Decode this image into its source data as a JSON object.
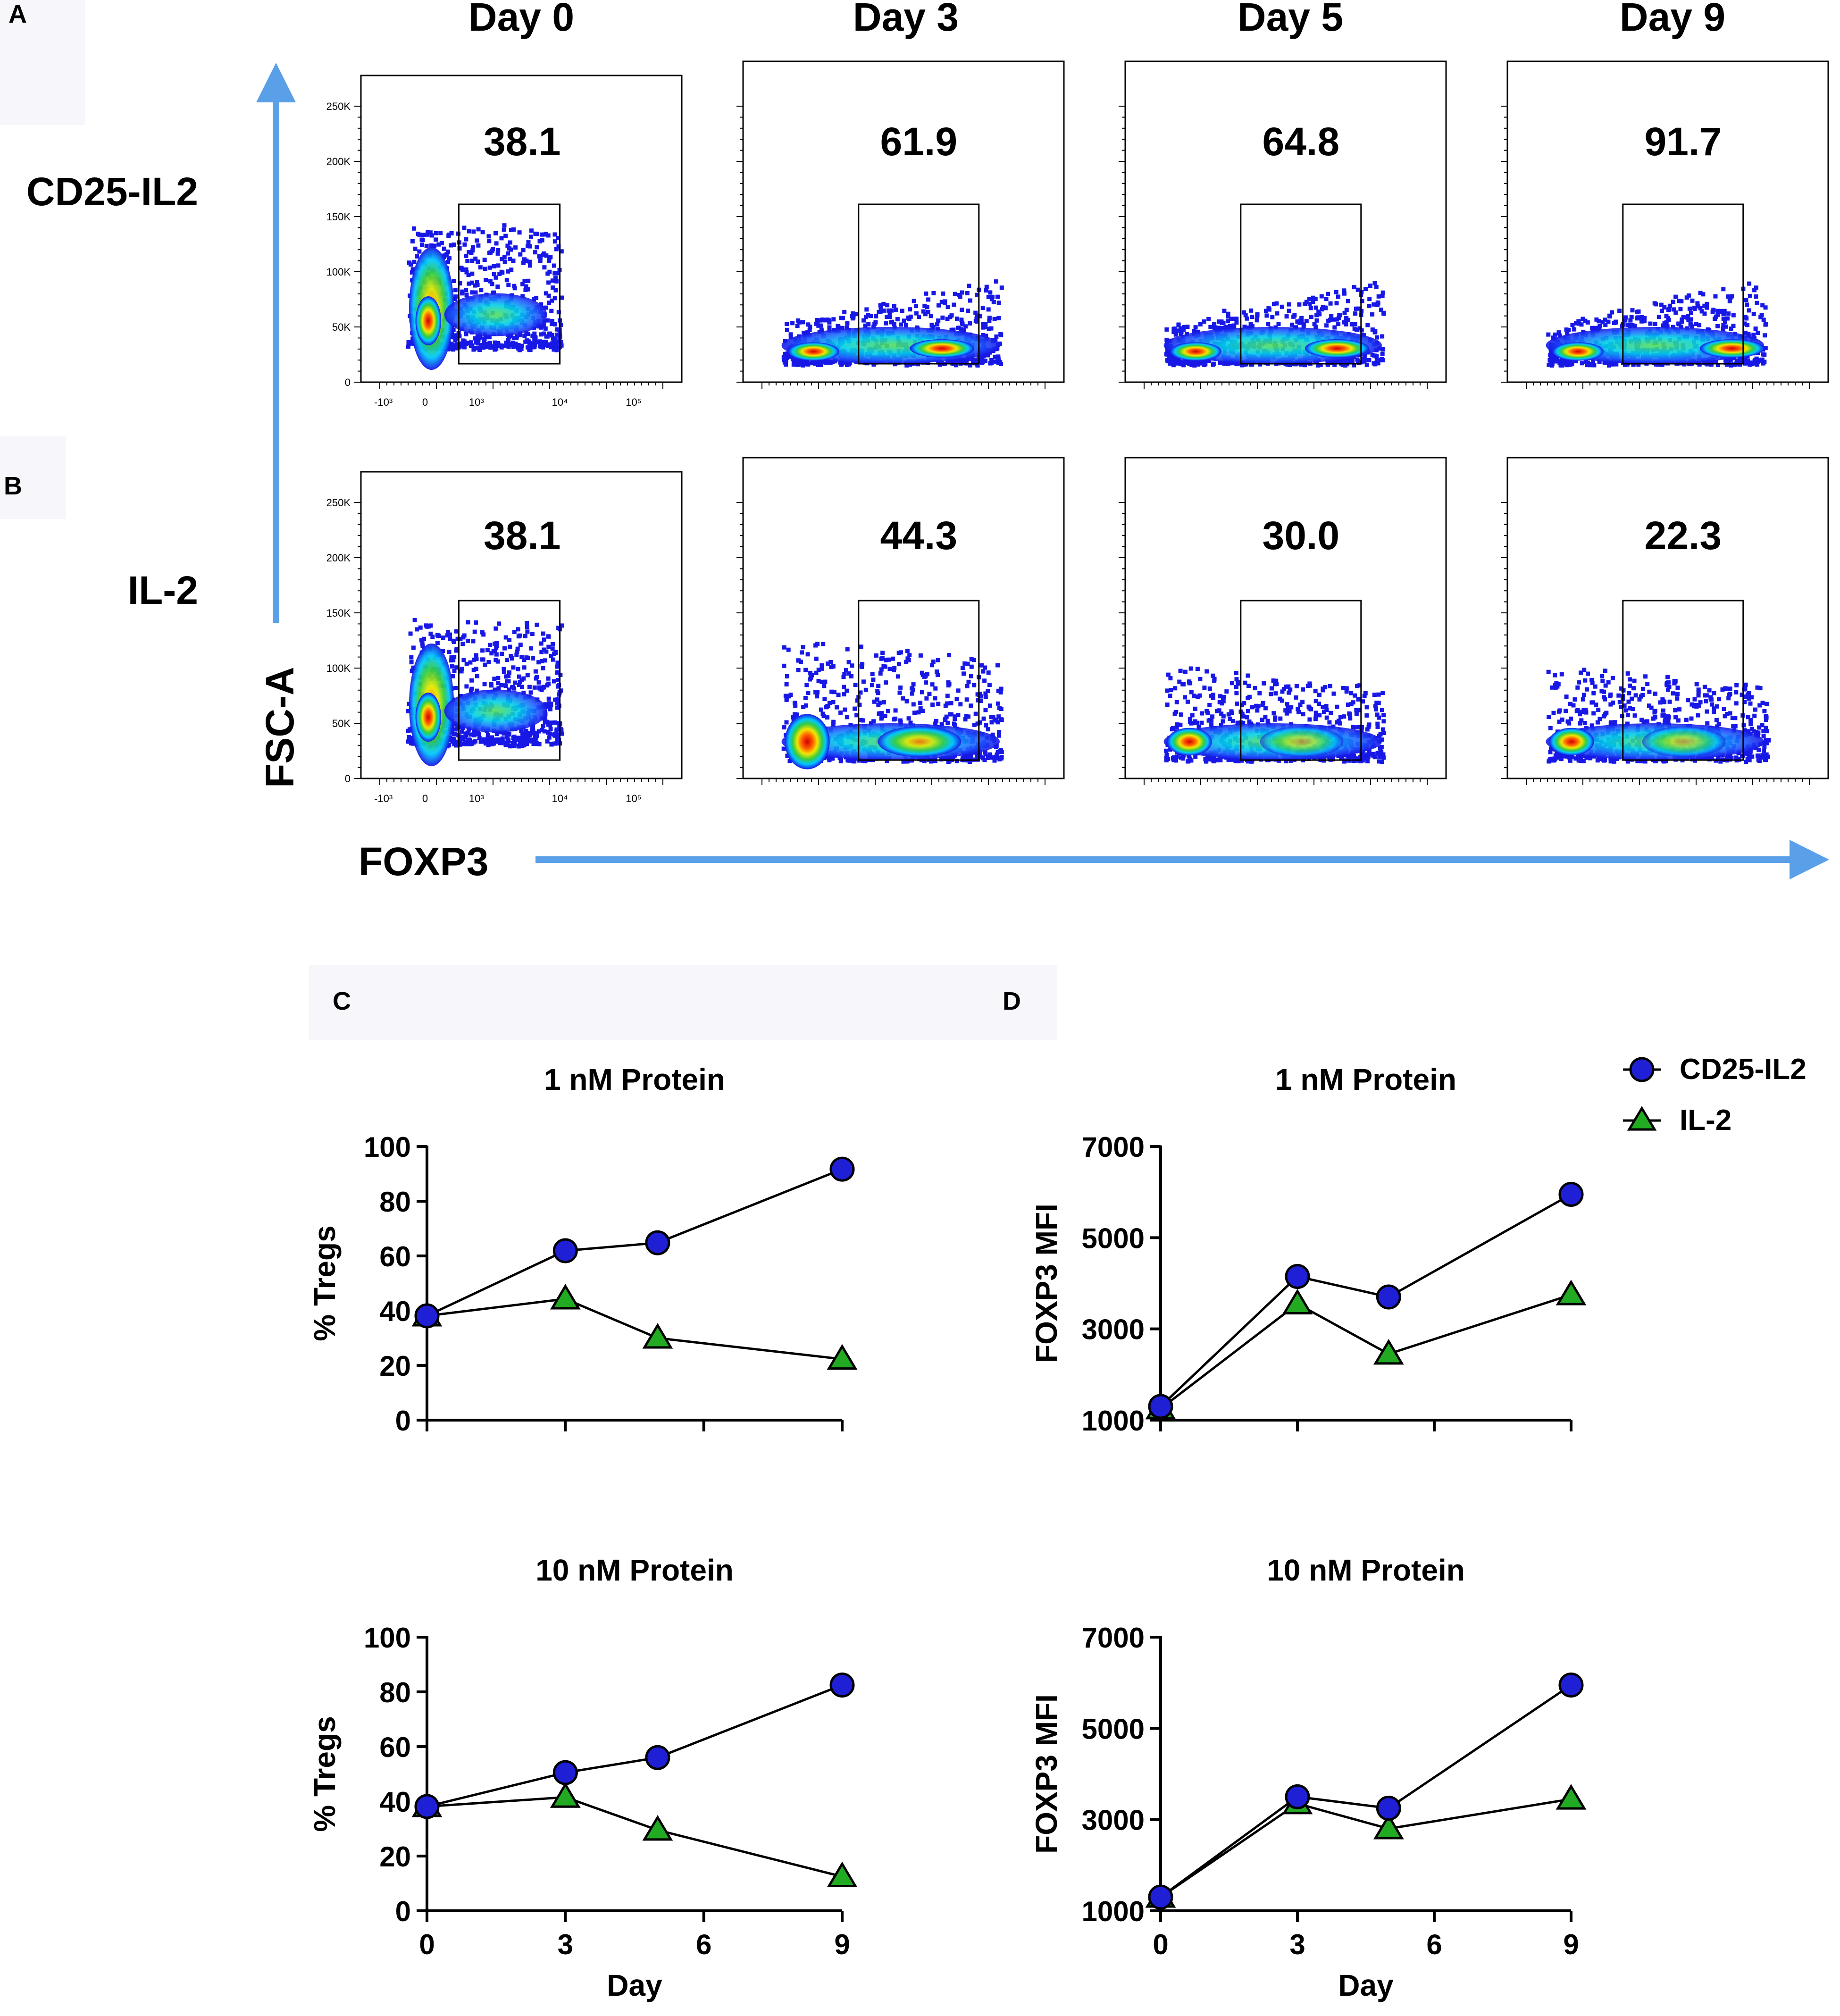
{
  "figure": {
    "panel_labels": {
      "a": "A",
      "b": "B",
      "c": "C",
      "d": "D"
    },
    "day_headers": [
      "Day 0",
      "Day 3",
      "Day 5",
      "Day 9"
    ],
    "row_labels": [
      "CD25-IL2",
      "IL-2"
    ],
    "y_axis_label": "FSC-A",
    "x_axis_label": "FOXP3",
    "flow_y_ticks": [
      "250K",
      "200K",
      "150K",
      "100K",
      "50K",
      "0"
    ],
    "flow_x_ticks": [
      "-10³",
      "0",
      "10³",
      "10⁴",
      "10⁵"
    ],
    "gate_values": {
      "cd25_il2": [
        "38.1",
        "61.9",
        "64.8",
        "91.7"
      ],
      "il2": [
        "38.1",
        "44.3",
        "30.0",
        "22.3"
      ]
    },
    "legend": [
      {
        "label": "CD25-IL2",
        "marker": "circle",
        "color": "#1f1fd6"
      },
      {
        "label": "IL-2",
        "marker": "triangle",
        "color": "#22aa22"
      }
    ],
    "colors": {
      "arrow": "#5aa0e8",
      "circle": "#1f1fd6",
      "triangle": "#22aa22"
    }
  },
  "chart_data": [
    {
      "type": "line",
      "panel": "C",
      "title": "1 nM Protein",
      "xlabel": "",
      "ylabel": "% Tregs",
      "x": [
        0,
        3,
        5,
        9
      ],
      "xlim": [
        0,
        9
      ],
      "ylim": [
        0,
        100
      ],
      "yticks": [
        0,
        20,
        40,
        60,
        80,
        100
      ],
      "xticks": [
        0,
        3,
        6,
        9
      ],
      "show_xtick_labels": false,
      "series": [
        {
          "name": "CD25-IL2",
          "values": [
            38.1,
            61.9,
            64.8,
            91.7
          ]
        },
        {
          "name": "IL-2",
          "values": [
            38.1,
            44.3,
            30.0,
            22.3
          ]
        }
      ]
    },
    {
      "type": "line",
      "panel": "D",
      "title": "1 nM Protein",
      "xlabel": "",
      "ylabel": "FOXP3 MFI",
      "x": [
        0,
        3,
        5,
        9
      ],
      "xlim": [
        0,
        9
      ],
      "ylim": [
        1000,
        7000
      ],
      "yticks": [
        1000,
        3000,
        5000,
        7000
      ],
      "xticks": [
        0,
        3,
        6,
        9
      ],
      "show_xtick_labels": false,
      "series": [
        {
          "name": "CD25-IL2",
          "values": [
            1300,
            4150,
            3700,
            5950
          ]
        },
        {
          "name": "IL-2",
          "values": [
            1250,
            3550,
            2450,
            3750
          ]
        }
      ]
    },
    {
      "type": "line",
      "panel": "C",
      "title": "10 nM Protein",
      "xlabel": "Day",
      "ylabel": "% Tregs",
      "x": [
        0,
        3,
        5,
        9
      ],
      "xlim": [
        0,
        9
      ],
      "ylim": [
        0,
        100
      ],
      "yticks": [
        0,
        20,
        40,
        60,
        80,
        100
      ],
      "xticks": [
        0,
        3,
        6,
        9
      ],
      "show_xtick_labels": true,
      "series": [
        {
          "name": "CD25-IL2",
          "values": [
            38.1,
            50.5,
            56.0,
            82.5
          ]
        },
        {
          "name": "IL-2",
          "values": [
            38.1,
            41.5,
            29.5,
            12.5
          ]
        }
      ]
    },
    {
      "type": "line",
      "panel": "D",
      "title": "10 nM Protein",
      "xlabel": "Day",
      "ylabel": "FOXP3 MFI",
      "x": [
        0,
        3,
        5,
        9
      ],
      "xlim": [
        0,
        9
      ],
      "ylim": [
        1000,
        7000
      ],
      "yticks": [
        1000,
        3000,
        5000,
        7000
      ],
      "xticks": [
        0,
        3,
        6,
        9
      ],
      "show_xtick_labels": true,
      "series": [
        {
          "name": "CD25-IL2",
          "values": [
            1300,
            3500,
            3250,
            5950
          ]
        },
        {
          "name": "IL-2",
          "values": [
            1300,
            3350,
            2800,
            3450
          ]
        }
      ]
    }
  ]
}
